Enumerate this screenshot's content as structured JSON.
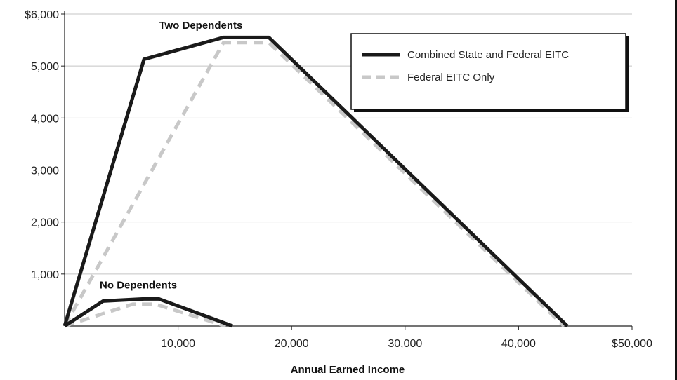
{
  "chart_data": {
    "type": "line",
    "title": "",
    "xlabel": "Annual Earned Income",
    "ylabel": "",
    "xlim": [
      0,
      50000
    ],
    "ylim": [
      0,
      6000
    ],
    "x_ticks": [
      {
        "value": 10000,
        "label": "10,000"
      },
      {
        "value": 20000,
        "label": "20,000"
      },
      {
        "value": 30000,
        "label": "30,000"
      },
      {
        "value": 40000,
        "label": "40,000"
      },
      {
        "value": 50000,
        "label": "$50,000"
      }
    ],
    "y_ticks": [
      {
        "value": 1000,
        "label": "1,000"
      },
      {
        "value": 2000,
        "label": "2,000"
      },
      {
        "value": 3000,
        "label": "3,000"
      },
      {
        "value": 4000,
        "label": "4,000"
      },
      {
        "value": 5000,
        "label": "5,000"
      },
      {
        "value": 6000,
        "label": "$6,000"
      }
    ],
    "grid": "horizontal",
    "legend": {
      "placement": "top-right",
      "entries": [
        {
          "label": "Combined State and Federal EITC",
          "style": "solid",
          "color": "#1a1a1a"
        },
        {
          "label": "Federal EITC Only",
          "style": "dashed",
          "color": "#c8c8c8"
        }
      ]
    },
    "series": [
      {
        "group": "Two Dependents",
        "style": "solid",
        "color": "#1a1a1a",
        "x": [
          0,
          7000,
          14000,
          18000,
          44300
        ],
        "y": [
          0,
          5130,
          5550,
          5550,
          0
        ]
      },
      {
        "group": "Two Dependents",
        "style": "dashed",
        "color": "#c8c8c8",
        "x": [
          0,
          14000,
          18000,
          44000
        ],
        "y": [
          0,
          5450,
          5450,
          0
        ]
      },
      {
        "group": "No Dependents",
        "style": "solid",
        "color": "#1a1a1a",
        "x": [
          0,
          3400,
          7000,
          8300,
          14800
        ],
        "y": [
          0,
          480,
          520,
          520,
          0
        ]
      },
      {
        "group": "No Dependents",
        "style": "dashed",
        "color": "#c8c8c8",
        "x": [
          0,
          6000,
          8000,
          14200
        ],
        "y": [
          0,
          420,
          420,
          0
        ]
      }
    ],
    "annotations": [
      {
        "text": "Two Dependents",
        "x": 12000,
        "y": 5720
      },
      {
        "text": "No Dependents",
        "x": 6500,
        "y": 720
      }
    ]
  }
}
